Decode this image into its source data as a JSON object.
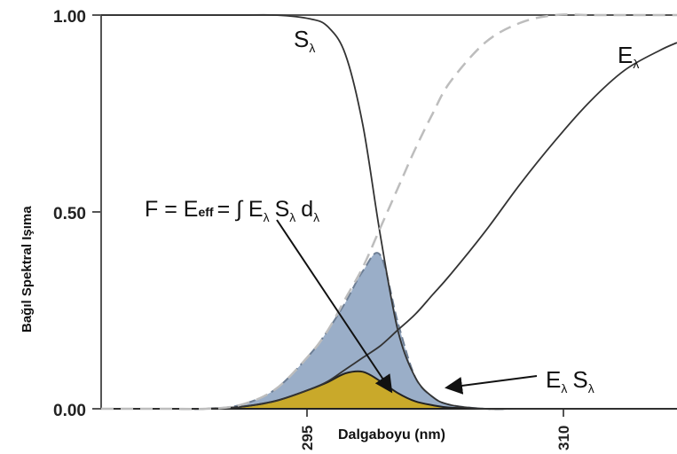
{
  "chart_data": {
    "type": "line",
    "title": "",
    "ylabel": "Bağıl Spektral Işıma",
    "xlabel": "Dalgaboyu (nm)",
    "ylim": [
      0,
      1
    ],
    "xlim": [
      284,
      317
    ],
    "yticks": [
      "0.00",
      "0.50",
      "1.00"
    ],
    "xticks": [
      "295",
      "310"
    ],
    "x": [
      284,
      286,
      288,
      290,
      292,
      294,
      296,
      297,
      298,
      299,
      300,
      301,
      302,
      303,
      304,
      306,
      308,
      310,
      312,
      314,
      316,
      317
    ],
    "series": [
      {
        "name": "Sλ",
        "style": "solid",
        "values": [
          1.0,
          1.0,
          1.0,
          1.0,
          1.0,
          1.0,
          0.99,
          0.97,
          0.9,
          0.72,
          0.44,
          0.2,
          0.08,
          0.03,
          0.01,
          0.0,
          0.0,
          0.0,
          0.0,
          0.0,
          0.0,
          0.0
        ]
      },
      {
        "name": "Eλ",
        "style": "solid",
        "values": [
          0.0,
          0.0,
          0.0,
          0.0,
          0.005,
          0.02,
          0.05,
          0.07,
          0.1,
          0.13,
          0.16,
          0.2,
          0.24,
          0.29,
          0.34,
          0.45,
          0.57,
          0.68,
          0.78,
          0.86,
          0.91,
          0.93
        ]
      },
      {
        "name": "",
        "style": "dashed",
        "values": [
          0.0,
          0.0,
          0.0,
          0.0,
          0.01,
          0.05,
          0.14,
          0.2,
          0.28,
          0.36,
          0.46,
          0.56,
          0.66,
          0.75,
          0.83,
          0.93,
          0.98,
          1.0,
          1.0,
          1.0,
          1.0,
          1.0
        ]
      },
      {
        "name": "Eλ Sλ",
        "style": "filled",
        "values": [
          0.0,
          0.0,
          0.0,
          0.0,
          0.005,
          0.02,
          0.05,
          0.068,
          0.09,
          0.094,
          0.07,
          0.04,
          0.019,
          0.009,
          0.003,
          0.0,
          0.0,
          0.0,
          0.0,
          0.0,
          0.0,
          0.0
        ]
      }
    ],
    "shaded_area": {
      "name": "",
      "values": [
        0.0,
        0.0,
        0.0,
        0.0,
        0.01,
        0.05,
        0.14,
        0.2,
        0.27,
        0.35,
        0.39,
        0.22,
        0.08,
        0.03,
        0.01,
        0.0,
        0.0,
        0.0,
        0.0,
        0.0,
        0.0,
        0.0
      ]
    },
    "labels": {
      "s": "S",
      "s_sub": "λ",
      "e": "E",
      "e_sub": "λ",
      "es_e": "E",
      "es_s": "S",
      "es_sub": "λ"
    },
    "formula": "F = E",
    "formula_sub_eff": "eff",
    "formula_rest": "= ∫ E",
    "formula_s": "S",
    "formula_d": "d",
    "formula_sub": "λ",
    "colors": {
      "blue_fill": "#9aaec8",
      "yellow_fill": "#c9a92a",
      "line": "#333333",
      "dashed": "#bdbdbd"
    }
  }
}
